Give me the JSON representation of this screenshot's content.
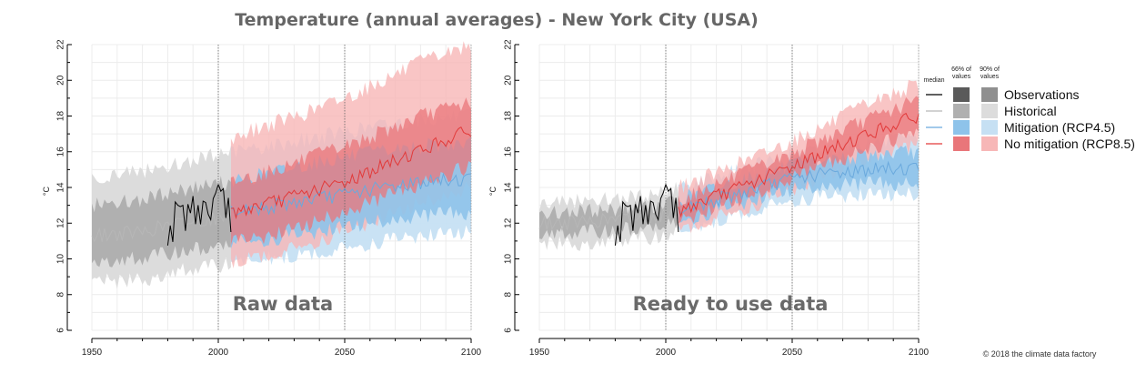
{
  "title": "Temperature (annual averages) - New York City (USA)",
  "credit": "© 2018 the climate data factory",
  "unit_label": "°C",
  "colors": {
    "observations": "#000000",
    "hist_median": "#b7b7b7",
    "hist_66": "#b0b0b0",
    "hist_90": "#dcdcdc",
    "rcp45_median": "#6aa9dd",
    "rcp45_66": "#8ec3ea",
    "rcp45_90": "#c6e0f3",
    "rcp85_median": "#e23a3a",
    "rcp85_66": "#e9767a",
    "rcp85_90": "#f7b7b7"
  },
  "legend": {
    "headers": {
      "median": "median",
      "p66": "66% of values",
      "p90": "90% of values"
    },
    "items": [
      {
        "key": "observations",
        "label": "Observations"
      },
      {
        "key": "historical",
        "label": "Historical"
      },
      {
        "key": "rcp45",
        "label": "Mitigation (RCP4.5)"
      },
      {
        "key": "rcp85",
        "label": "No mitigation (RCP8.5)"
      }
    ]
  },
  "chart_data": [
    {
      "type": "line",
      "panel_label": "Raw data",
      "xlabel": "",
      "ylabel": "°C",
      "xlim": [
        1950,
        2100
      ],
      "ylim": [
        6,
        22
      ],
      "x_ticks": [
        1950,
        2000,
        2050,
        2100
      ],
      "y_ticks": [
        6,
        8,
        10,
        12,
        14,
        16,
        18,
        20,
        22
      ],
      "vlines": [
        2000,
        2050
      ],
      "grid": true,
      "observations": {
        "x": [
          1980,
          1985,
          1990,
          1995,
          2000,
          2005
        ],
        "y": [
          11.8,
          12.3,
          12.9,
          12.7,
          13.2,
          12.6
        ]
      },
      "historical": {
        "x": [
          1950,
          1960,
          1970,
          1980,
          1990,
          2000,
          2005
        ],
        "median": [
          11.3,
          11.4,
          11.5,
          11.9,
          12.1,
          12.3,
          12.6
        ],
        "p66": [
          [
            10.0,
            13.0
          ],
          [
            9.9,
            13.2
          ],
          [
            10.0,
            13.3
          ],
          [
            10.3,
            13.7
          ],
          [
            10.5,
            14.0
          ],
          [
            10.7,
            14.2
          ],
          [
            10.9,
            14.3
          ]
        ],
        "p90": [
          [
            9.0,
            14.5
          ],
          [
            8.7,
            14.8
          ],
          [
            8.8,
            14.9
          ],
          [
            9.2,
            15.2
          ],
          [
            9.4,
            15.5
          ],
          [
            9.6,
            15.9
          ],
          [
            9.8,
            16.0
          ]
        ]
      },
      "rcp45": {
        "x": [
          2005,
          2020,
          2035,
          2050,
          2065,
          2080,
          2100
        ],
        "median": [
          12.6,
          12.9,
          13.3,
          13.6,
          14.0,
          14.3,
          14.5
        ],
        "p66": [
          [
            10.9,
            14.3
          ],
          [
            11.1,
            14.8
          ],
          [
            11.4,
            15.3
          ],
          [
            11.8,
            15.7
          ],
          [
            12.1,
            16.0
          ],
          [
            12.4,
            16.3
          ],
          [
            12.6,
            16.5
          ]
        ],
        "p90": [
          [
            9.8,
            16.0
          ],
          [
            10.0,
            16.3
          ],
          [
            10.2,
            16.7
          ],
          [
            10.6,
            17.1
          ],
          [
            11.0,
            17.5
          ],
          [
            11.3,
            17.8
          ],
          [
            11.5,
            18.0
          ]
        ]
      },
      "rcp85": {
        "x": [
          2005,
          2020,
          2035,
          2050,
          2065,
          2080,
          2100
        ],
        "median": [
          12.6,
          13.1,
          13.7,
          14.3,
          15.2,
          16.1,
          17.2
        ],
        "p66": [
          [
            10.9,
            14.3
          ],
          [
            11.3,
            14.9
          ],
          [
            11.9,
            15.6
          ],
          [
            12.6,
            16.3
          ],
          [
            13.4,
            17.1
          ],
          [
            14.2,
            18.0
          ],
          [
            15.2,
            18.8
          ]
        ],
        "p90": [
          [
            9.8,
            16.8
          ],
          [
            10.2,
            17.5
          ],
          [
            10.8,
            18.2
          ],
          [
            11.5,
            19.0
          ],
          [
            12.3,
            20.0
          ],
          [
            13.1,
            21.0
          ],
          [
            14.0,
            22.0
          ]
        ]
      }
    },
    {
      "type": "line",
      "panel_label": "Ready to use data",
      "xlabel": "",
      "ylabel": "°C",
      "xlim": [
        1950,
        2100
      ],
      "ylim": [
        6,
        22
      ],
      "x_ticks": [
        1950,
        2000,
        2050,
        2100
      ],
      "y_ticks": [
        6,
        8,
        10,
        12,
        14,
        16,
        18,
        20,
        22
      ],
      "vlines": [
        2000,
        2050
      ],
      "grid": true,
      "observations": {
        "x": [
          1980,
          1985,
          1990,
          1995,
          2000,
          2005
        ],
        "y": [
          11.8,
          12.3,
          12.9,
          12.7,
          13.2,
          12.6
        ]
      },
      "historical": {
        "x": [
          1950,
          1960,
          1970,
          1980,
          1990,
          2000,
          2005
        ],
        "median": [
          12.0,
          12.0,
          12.1,
          12.2,
          12.3,
          12.5,
          12.7
        ],
        "p66": [
          [
            11.5,
            12.6
          ],
          [
            11.4,
            12.6
          ],
          [
            11.5,
            12.7
          ],
          [
            11.6,
            12.8
          ],
          [
            11.7,
            12.9
          ],
          [
            11.9,
            13.1
          ],
          [
            12.1,
            13.3
          ]
        ],
        "p90": [
          [
            10.9,
            13.1
          ],
          [
            10.8,
            13.2
          ],
          [
            10.9,
            13.3
          ],
          [
            11.0,
            13.4
          ],
          [
            11.1,
            13.5
          ],
          [
            11.3,
            13.8
          ],
          [
            11.5,
            14.0
          ]
        ]
      },
      "rcp45": {
        "x": [
          2005,
          2020,
          2035,
          2050,
          2065,
          2080,
          2100
        ],
        "median": [
          12.7,
          13.3,
          13.9,
          14.5,
          14.8,
          15.0,
          15.1
        ],
        "p66": [
          [
            12.1,
            13.3
          ],
          [
            12.7,
            14.0
          ],
          [
            13.3,
            14.6
          ],
          [
            13.9,
            15.2
          ],
          [
            14.1,
            15.6
          ],
          [
            14.2,
            15.8
          ],
          [
            14.2,
            16.0
          ]
        ],
        "p90": [
          [
            11.5,
            14.0
          ],
          [
            12.1,
            14.6
          ],
          [
            12.7,
            15.2
          ],
          [
            13.3,
            15.8
          ],
          [
            13.5,
            16.2
          ],
          [
            13.6,
            16.5
          ],
          [
            13.6,
            16.7
          ]
        ]
      },
      "rcp85": {
        "x": [
          2005,
          2020,
          2035,
          2050,
          2065,
          2080,
          2100
        ],
        "median": [
          12.7,
          13.5,
          14.3,
          15.2,
          16.1,
          17.0,
          18.0
        ],
        "p66": [
          [
            12.1,
            13.3
          ],
          [
            12.9,
            14.2
          ],
          [
            13.6,
            15.0
          ],
          [
            14.5,
            15.9
          ],
          [
            15.3,
            16.9
          ],
          [
            16.2,
            17.8
          ],
          [
            17.1,
            18.9
          ]
        ],
        "p90": [
          [
            11.5,
            14.0
          ],
          [
            12.3,
            14.8
          ],
          [
            13.0,
            15.7
          ],
          [
            13.9,
            16.6
          ],
          [
            14.7,
            17.6
          ],
          [
            15.6,
            18.7
          ],
          [
            16.4,
            19.8
          ]
        ]
      }
    }
  ]
}
